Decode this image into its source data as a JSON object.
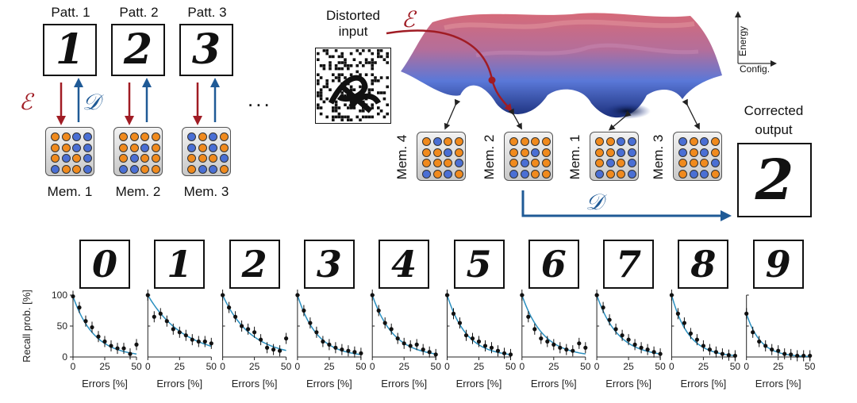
{
  "patterns": [
    {
      "title": "Patt. 1",
      "digit": "1",
      "mem": "Mem. 1",
      "bits": [
        1,
        1,
        0,
        0,
        1,
        1,
        0,
        0,
        1,
        0,
        1,
        0,
        0,
        1,
        1,
        0
      ]
    },
    {
      "title": "Patt. 2",
      "digit": "2",
      "mem": "Mem. 2",
      "bits": [
        1,
        1,
        1,
        1,
        1,
        1,
        0,
        1,
        1,
        0,
        1,
        1,
        0,
        0,
        1,
        1
      ]
    },
    {
      "title": "Patt. 3",
      "digit": "3",
      "mem": "Mem. 3",
      "bits": [
        0,
        1,
        0,
        1,
        0,
        1,
        0,
        1,
        1,
        1,
        1,
        0,
        1,
        0,
        0,
        1
      ]
    }
  ],
  "ellipsis": "...",
  "encode_symbol": "ℰ",
  "decode_symbol": "𝒟",
  "distorted_label_line1": "Distorted",
  "distorted_label_line2": "input",
  "corrected_label_line1": "Corrected",
  "corrected_label_line2": "output",
  "corrected_digit": "2",
  "energy_axis": {
    "y": "Energy",
    "x": "Config."
  },
  "landscape_memories": [
    {
      "label": "Mem. 4",
      "bits": [
        1,
        0,
        1,
        1,
        1,
        1,
        0,
        1,
        1,
        1,
        1,
        0,
        0,
        1,
        0,
        1
      ]
    },
    {
      "label": "Mem. 2",
      "bits": [
        1,
        1,
        1,
        1,
        1,
        1,
        0,
        1,
        1,
        0,
        1,
        1,
        0,
        0,
        1,
        1
      ]
    },
    {
      "label": "Mem. 1",
      "bits": [
        1,
        1,
        0,
        0,
        1,
        1,
        0,
        0,
        1,
        0,
        1,
        0,
        0,
        1,
        1,
        0
      ]
    },
    {
      "label": "Mem. 3",
      "bits": [
        0,
        1,
        0,
        1,
        0,
        1,
        0,
        1,
        1,
        1,
        1,
        0,
        1,
        0,
        0,
        1
      ]
    }
  ],
  "colors": {
    "encode": "#a01c24",
    "decode": "#1f5a96",
    "orange": "#f08a1d",
    "blue": "#4a6fd4",
    "fit": "#2a8fbf"
  },
  "chart_data": {
    "type": "scatter",
    "ylabel": "Recall prob. [%]",
    "xlabel": "Errors [%]",
    "xlim": [
      0,
      50
    ],
    "ylim": [
      0,
      100
    ],
    "xticks": [
      0,
      25,
      50
    ],
    "yticks": [
      0,
      50,
      100
    ],
    "xtick_labels_first": [
      "0",
      "25",
      "50"
    ],
    "xtick_labels_rest": [
      "0",
      "25",
      "50"
    ],
    "ytick_labels": [
      "0",
      "50",
      "100"
    ],
    "panels": [
      {
        "digit": "0",
        "x": [
          0,
          5,
          10,
          15,
          20,
          25,
          30,
          35,
          40,
          45,
          50
        ],
        "y": [
          98,
          80,
          58,
          48,
          33,
          25,
          18,
          14,
          14,
          5,
          20
        ],
        "fit_decay": 0.06
      },
      {
        "digit": "1",
        "x": [
          0,
          5,
          10,
          15,
          20,
          25,
          30,
          35,
          40,
          45,
          50
        ],
        "y": [
          100,
          65,
          70,
          58,
          45,
          40,
          35,
          28,
          25,
          25,
          22
        ],
        "fit_decay": 0.035
      },
      {
        "digit": "2",
        "x": [
          0,
          5,
          10,
          15,
          20,
          25,
          30,
          35,
          40,
          45,
          50
        ],
        "y": [
          100,
          80,
          65,
          50,
          45,
          40,
          28,
          15,
          12,
          10,
          30
        ],
        "fit_decay": 0.045
      },
      {
        "digit": "3",
        "x": [
          0,
          5,
          10,
          15,
          20,
          25,
          30,
          35,
          40,
          45,
          50
        ],
        "y": [
          100,
          75,
          55,
          40,
          25,
          20,
          15,
          12,
          10,
          8,
          6
        ],
        "fit_decay": 0.065
      },
      {
        "digit": "4",
        "x": [
          0,
          5,
          10,
          15,
          20,
          25,
          30,
          35,
          40,
          45,
          50
        ],
        "y": [
          100,
          75,
          55,
          45,
          30,
          22,
          18,
          20,
          12,
          8,
          4
        ],
        "fit_decay": 0.06
      },
      {
        "digit": "5",
        "x": [
          0,
          5,
          10,
          15,
          20,
          25,
          30,
          35,
          40,
          45,
          50
        ],
        "y": [
          100,
          70,
          55,
          35,
          30,
          25,
          18,
          15,
          10,
          6,
          4
        ],
        "fit_decay": 0.065
      },
      {
        "digit": "6",
        "x": [
          0,
          5,
          10,
          15,
          20,
          25,
          30,
          35,
          40,
          45,
          50
        ],
        "y": [
          100,
          65,
          45,
          30,
          25,
          20,
          15,
          12,
          10,
          22,
          15
        ],
        "fit_decay": 0.06
      },
      {
        "digit": "7",
        "x": [
          0,
          5,
          10,
          15,
          20,
          25,
          30,
          35,
          40,
          45,
          50
        ],
        "y": [
          100,
          80,
          60,
          45,
          35,
          28,
          20,
          15,
          12,
          8,
          5
        ],
        "fit_decay": 0.06
      },
      {
        "digit": "8",
        "x": [
          0,
          5,
          10,
          15,
          20,
          25,
          30,
          35,
          40,
          45,
          50
        ],
        "y": [
          100,
          70,
          55,
          38,
          28,
          18,
          12,
          8,
          5,
          3,
          2
        ],
        "fit_decay": 0.075
      },
      {
        "digit": "9",
        "x": [
          0,
          5,
          10,
          15,
          20,
          25,
          30,
          35,
          40,
          45,
          50
        ],
        "y": [
          70,
          40,
          25,
          18,
          12,
          10,
          5,
          4,
          2,
          2,
          2
        ],
        "fit_decay": 0.09
      }
    ]
  }
}
